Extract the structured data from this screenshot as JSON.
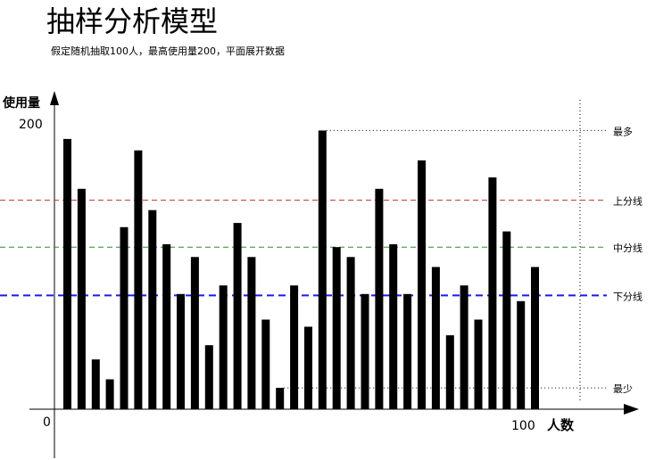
{
  "title": "抽样分析模型",
  "subtitle": "假定随机抽取100人，最高使用量200，平面展开数据",
  "chart_data": {
    "type": "bar",
    "ylabel": "使用量",
    "xlabel": "人数",
    "ylim": [
      0,
      200
    ],
    "y_tick_labels": [
      "0",
      "200"
    ],
    "x_end_label": "100",
    "bar_count": 34,
    "bar_color": "#000000",
    "values": [
      190,
      155,
      35,
      21,
      128,
      182,
      140,
      116,
      81,
      107,
      45,
      87,
      131,
      107,
      63,
      15,
      87,
      58,
      196,
      114,
      107,
      81,
      155,
      116,
      81,
      175,
      100,
      52,
      87,
      63,
      163,
      125,
      76,
      100
    ],
    "reference_lines": [
      {
        "label": "最多",
        "value": 196,
        "color": "#000000",
        "style": "dotted"
      },
      {
        "label": "上分线",
        "value": 147,
        "color": "#c04040",
        "style": "dashed"
      },
      {
        "label": "中分线",
        "value": 114,
        "color": "#2e8b2e",
        "style": "dashed"
      },
      {
        "label": "下分线",
        "value": 80,
        "color": "#1a1aee",
        "style": "dashed"
      },
      {
        "label": "最少",
        "value": 15,
        "color": "#000000",
        "style": "dotted"
      }
    ]
  }
}
